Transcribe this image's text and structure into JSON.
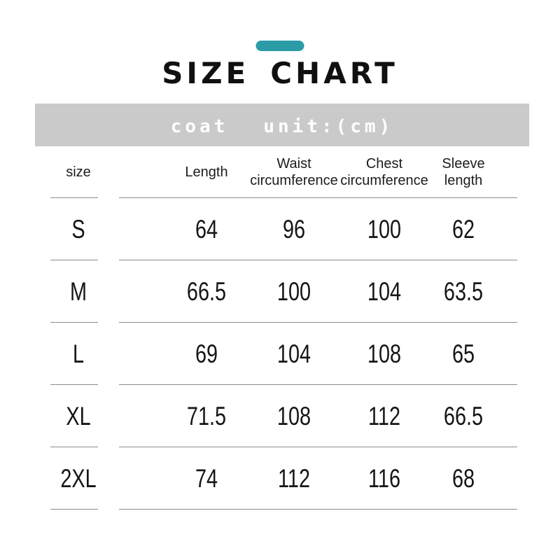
{
  "title": {
    "word1": "SIZE",
    "word2": "CHART"
  },
  "banner": {
    "product": "coat",
    "unit": "unit:(cm)",
    "bg_color": "#CACACA",
    "text_color": "#FFFFFF"
  },
  "colors": {
    "accent_teal": "#2B9CA6",
    "divider_gray": "#8C8C8C",
    "text_black": "#111111"
  },
  "table": {
    "headers": [
      {
        "line1": "size",
        "line2": ""
      },
      {
        "line1": "Length",
        "line2": ""
      },
      {
        "line1": "Waist",
        "line2": "circumference"
      },
      {
        "line1": "Chest",
        "line2": "circumference"
      },
      {
        "line1": "Sleeve",
        "line2": "length"
      }
    ],
    "rows": [
      {
        "size": "S",
        "values": [
          "64",
          "96",
          "100",
          "62"
        ]
      },
      {
        "size": "M",
        "values": [
          "66.5",
          "100",
          "104",
          "63.5"
        ]
      },
      {
        "size": "L",
        "values": [
          "69",
          "104",
          "108",
          "65"
        ]
      },
      {
        "size": "XL",
        "values": [
          "71.5",
          "108",
          "112",
          "66.5"
        ]
      },
      {
        "size": "2XL",
        "values": [
          "74",
          "112",
          "116",
          "68"
        ]
      }
    ]
  },
  "chart_data": {
    "type": "table",
    "title": "SIZE CHART",
    "subtitle": "coat unit:(cm)",
    "columns": [
      "size",
      "Length",
      "Waist circumference",
      "Chest circumference",
      "Sleeve length"
    ],
    "rows": [
      [
        "S",
        64,
        96,
        100,
        62
      ],
      [
        "M",
        66.5,
        100,
        104,
        63.5
      ],
      [
        "L",
        69,
        104,
        108,
        65
      ],
      [
        "XL",
        71.5,
        108,
        112,
        66.5
      ],
      [
        "2XL",
        74,
        112,
        116,
        68
      ]
    ],
    "unit": "cm",
    "layout": {
      "grid": "horizontal-row-dividers-only",
      "header_band_color": "#CACACA"
    }
  }
}
